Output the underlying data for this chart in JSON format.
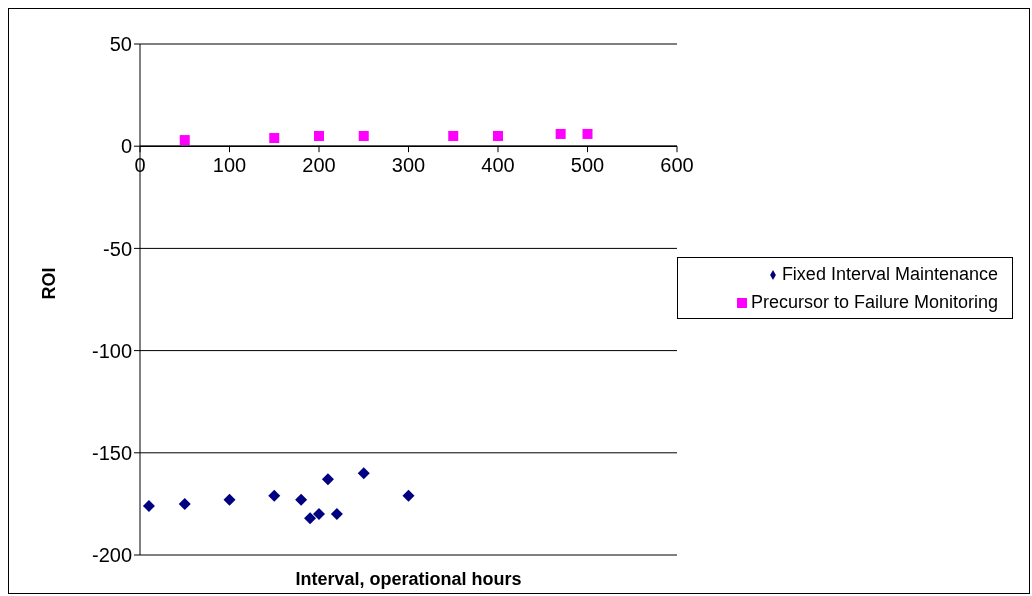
{
  "chart_data": {
    "type": "scatter",
    "xlabel": "Interval, operational hours",
    "ylabel": "ROI",
    "xlim": [
      0,
      600
    ],
    "xticks": [
      0,
      100,
      200,
      300,
      400,
      500,
      600
    ],
    "ylim": [
      -200,
      50
    ],
    "yticks": [
      -200,
      -150,
      -100,
      -50,
      0,
      50
    ],
    "grid": "y",
    "legend": "right",
    "series": [
      {
        "name": "Fixed Interval Maintenance",
        "color": "#000080",
        "marker": "diamond",
        "x": [
          10,
          50,
          100,
          150,
          180,
          190,
          200,
          210,
          220,
          250,
          300
        ],
        "values": [
          -176,
          -175,
          -173,
          -171,
          -173,
          -182,
          -180,
          -163,
          -180,
          -160,
          -171
        ]
      },
      {
        "name": "Precursor to Failure Monitoring",
        "color": "#ff00ff",
        "marker": "square",
        "x": [
          50,
          150,
          200,
          250,
          350,
          400,
          470,
          500
        ],
        "values": [
          3,
          4,
          5,
          5,
          5,
          5,
          6,
          6
        ]
      }
    ]
  }
}
